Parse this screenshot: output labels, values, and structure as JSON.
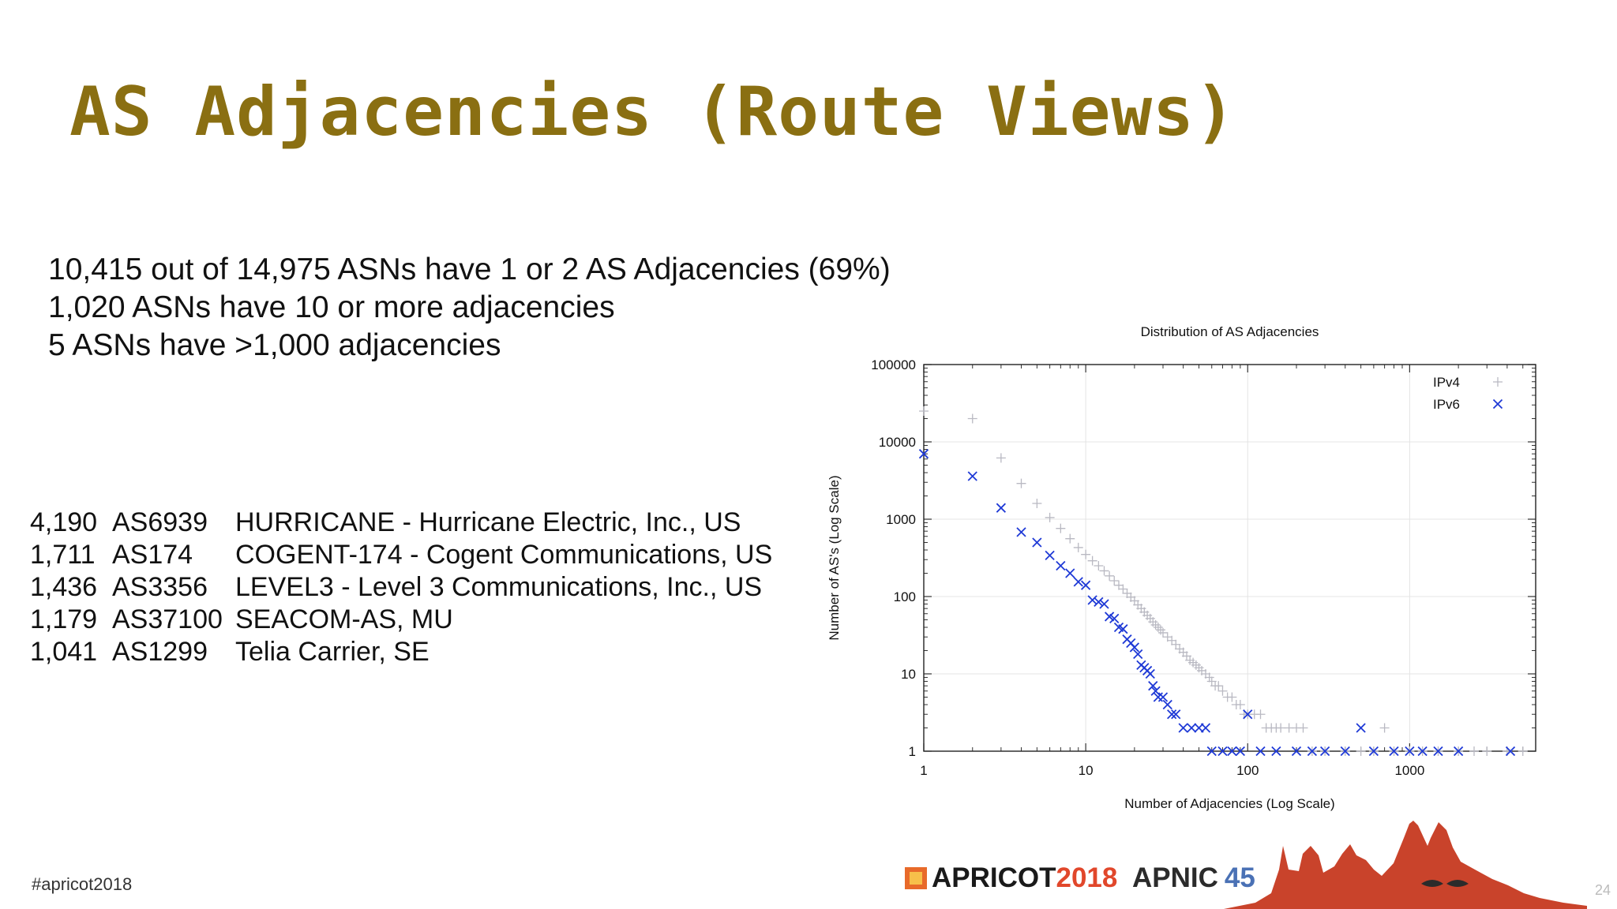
{
  "title": "AS Adjacencies (Route Views)",
  "stats": [
    "10,415 out of 14,975  ASNs have 1 or 2 AS Adjacencies (69%)",
    "1,020 ASNs have 10 or more adjacencies",
    "5 ASNs have >1,000 adjacencies"
  ],
  "as_list": [
    {
      "count": "4,190",
      "asn": "AS6939",
      "name": "HURRICANE - Hurricane Electric, Inc., US"
    },
    {
      "count": "1,711",
      "asn": "AS174",
      "name": "COGENT-174 - Cogent Communications, US"
    },
    {
      "count": "1,436",
      "asn": "AS3356",
      "name": "LEVEL3 - Level 3 Communications, Inc., US"
    },
    {
      "count": "1,179",
      "asn": "AS37100",
      "name": "SEACOM-AS, MU"
    },
    {
      "count": "1,041",
      "asn": "AS1299",
      "name": "Telia Carrier, SE"
    }
  ],
  "footer": {
    "hashtag": "#apricot2018",
    "page_number": "24",
    "logo_apricot": "APRICOT",
    "logo_year": "2018",
    "logo_apnic": "APNIC",
    "logo_apnic_num": "45"
  },
  "colors": {
    "title": "#8a6f12",
    "ipv4": "#b9b9c2",
    "ipv6": "#1f3ad6",
    "apricot_year": "#e1472b",
    "skyline": "#c9432b"
  },
  "chart_data": {
    "type": "scatter",
    "title": "Distribution of AS Adjacencies",
    "xlabel": "Number of Adjacencies (Log Scale)",
    "ylabel": "Number of AS's (Log Scale)",
    "xscale": "log",
    "yscale": "log",
    "xlim": [
      1,
      6000
    ],
    "ylim": [
      1,
      100000
    ],
    "xticks": [
      "1",
      "10",
      "100",
      "1000"
    ],
    "yticks": [
      "1",
      "10",
      "100",
      "1000",
      "10000",
      "100000"
    ],
    "grid": true,
    "legend": "top-right",
    "series": [
      {
        "name": "IPv4",
        "marker": "+",
        "points": [
          [
            1,
            25000
          ],
          [
            2,
            20000
          ],
          [
            3,
            6200
          ],
          [
            4,
            2900
          ],
          [
            5,
            1600
          ],
          [
            6,
            1050
          ],
          [
            7,
            760
          ],
          [
            8,
            560
          ],
          [
            9,
            430
          ],
          [
            10,
            350
          ],
          [
            11,
            290
          ],
          [
            12,
            250
          ],
          [
            13,
            215
          ],
          [
            14,
            185
          ],
          [
            15,
            160
          ],
          [
            16,
            140
          ],
          [
            17,
            125
          ],
          [
            18,
            110
          ],
          [
            19,
            98
          ],
          [
            20,
            88
          ],
          [
            21,
            78
          ],
          [
            22,
            70
          ],
          [
            23,
            63
          ],
          [
            24,
            57
          ],
          [
            25,
            52
          ],
          [
            26,
            47
          ],
          [
            27,
            43
          ],
          [
            28,
            40
          ],
          [
            29,
            37
          ],
          [
            30,
            34
          ],
          [
            32,
            30
          ],
          [
            34,
            27
          ],
          [
            36,
            24
          ],
          [
            38,
            21
          ],
          [
            40,
            19
          ],
          [
            42,
            17
          ],
          [
            44,
            15
          ],
          [
            46,
            14
          ],
          [
            48,
            13
          ],
          [
            50,
            12
          ],
          [
            52,
            11
          ],
          [
            55,
            10
          ],
          [
            58,
            9
          ],
          [
            60,
            8
          ],
          [
            63,
            7
          ],
          [
            66,
            7
          ],
          [
            70,
            6
          ],
          [
            75,
            5
          ],
          [
            80,
            5
          ],
          [
            85,
            4
          ],
          [
            90,
            4
          ],
          [
            95,
            3
          ],
          [
            100,
            3
          ],
          [
            110,
            3
          ],
          [
            120,
            3
          ],
          [
            130,
            2
          ],
          [
            140,
            2
          ],
          [
            150,
            2
          ],
          [
            160,
            2
          ],
          [
            180,
            2
          ],
          [
            200,
            2
          ],
          [
            220,
            2
          ],
          [
            250,
            1
          ],
          [
            300,
            1
          ],
          [
            400,
            1
          ],
          [
            500,
            1
          ],
          [
            600,
            1
          ],
          [
            700,
            2
          ],
          [
            800,
            1
          ],
          [
            1000,
            1
          ],
          [
            1200,
            1
          ],
          [
            1500,
            1
          ],
          [
            2000,
            1
          ],
          [
            2500,
            1
          ],
          [
            3000,
            1
          ],
          [
            4000,
            1
          ],
          [
            5000,
            1
          ]
        ]
      },
      {
        "name": "IPv6",
        "marker": "x",
        "points": [
          [
            1,
            7000
          ],
          [
            2,
            3600
          ],
          [
            3,
            1400
          ],
          [
            4,
            680
          ],
          [
            5,
            500
          ],
          [
            6,
            340
          ],
          [
            7,
            250
          ],
          [
            8,
            200
          ],
          [
            9,
            155
          ],
          [
            10,
            140
          ],
          [
            11,
            90
          ],
          [
            12,
            85
          ],
          [
            13,
            80
          ],
          [
            14,
            55
          ],
          [
            15,
            52
          ],
          [
            16,
            40
          ],
          [
            17,
            38
          ],
          [
            18,
            28
          ],
          [
            19,
            25
          ],
          [
            20,
            22
          ],
          [
            21,
            18
          ],
          [
            22,
            13
          ],
          [
            23,
            12
          ],
          [
            24,
            11
          ],
          [
            25,
            10
          ],
          [
            26,
            7
          ],
          [
            27,
            6
          ],
          [
            28,
            5
          ],
          [
            30,
            5
          ],
          [
            32,
            4
          ],
          [
            34,
            3
          ],
          [
            36,
            3
          ],
          [
            40,
            2
          ],
          [
            45,
            2
          ],
          [
            50,
            2
          ],
          [
            55,
            2
          ],
          [
            60,
            1
          ],
          [
            70,
            1
          ],
          [
            80,
            1
          ],
          [
            90,
            1
          ],
          [
            100,
            3
          ],
          [
            120,
            1
          ],
          [
            150,
            1
          ],
          [
            200,
            1
          ],
          [
            250,
            1
          ],
          [
            300,
            1
          ],
          [
            400,
            1
          ],
          [
            500,
            2
          ],
          [
            600,
            1
          ],
          [
            800,
            1
          ],
          [
            1000,
            1
          ],
          [
            1200,
            1
          ],
          [
            1500,
            1
          ],
          [
            2000,
            1
          ],
          [
            4190,
            1
          ]
        ]
      }
    ]
  }
}
